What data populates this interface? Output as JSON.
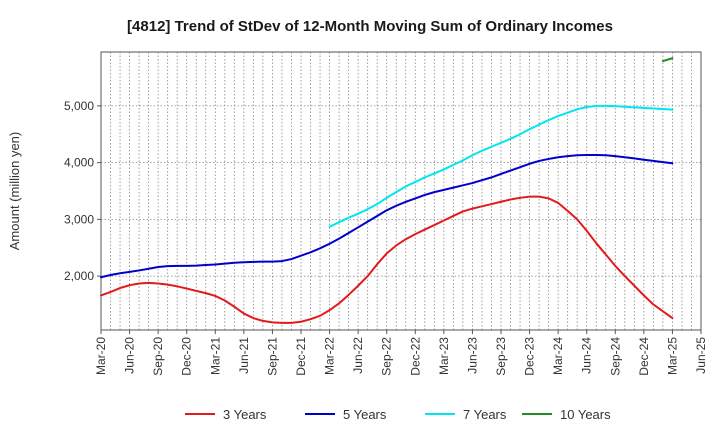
{
  "chart_data": {
    "type": "line",
    "title": "[4812]  Trend of StDev of 12-Month Moving Sum of Ordinary Incomes",
    "xlabel": "",
    "ylabel": "Amount (million yen)",
    "x_tick_labels": [
      "Mar-20",
      "Jun-20",
      "Sep-20",
      "Dec-20",
      "Mar-21",
      "Jun-21",
      "Sep-21",
      "Dec-21",
      "Mar-22",
      "Jun-22",
      "Sep-22",
      "Dec-22",
      "Mar-23",
      "Jun-23",
      "Sep-23",
      "Dec-23",
      "Mar-24",
      "Jun-24",
      "Sep-24",
      "Dec-24",
      "Mar-25",
      "Jun-25"
    ],
    "y_tick_labels": [
      "2,000",
      "3,000",
      "4,000",
      "5,000"
    ],
    "y_ticks": [
      2000,
      3000,
      4000,
      5000
    ],
    "ylim": [
      1050,
      5950
    ],
    "grid": true,
    "legend_position": "bottom",
    "x": [
      "2020-03",
      "2020-04",
      "2020-05",
      "2020-06",
      "2020-07",
      "2020-08",
      "2020-09",
      "2020-10",
      "2020-11",
      "2020-12",
      "2021-01",
      "2021-02",
      "2021-03",
      "2021-04",
      "2021-05",
      "2021-06",
      "2021-07",
      "2021-08",
      "2021-09",
      "2021-10",
      "2021-11",
      "2021-12",
      "2022-01",
      "2022-02",
      "2022-03",
      "2022-04",
      "2022-05",
      "2022-06",
      "2022-07",
      "2022-08",
      "2022-09",
      "2022-10",
      "2022-11",
      "2022-12",
      "2023-01",
      "2023-02",
      "2023-03",
      "2023-04",
      "2023-05",
      "2023-06",
      "2023-07",
      "2023-08",
      "2023-09",
      "2023-10",
      "2023-11",
      "2023-12",
      "2024-01",
      "2024-02",
      "2024-03",
      "2024-04",
      "2024-05",
      "2024-06",
      "2024-07",
      "2024-08",
      "2024-09",
      "2024-10",
      "2024-11",
      "2024-12",
      "2025-01",
      "2025-02",
      "2025-03"
    ],
    "series": [
      {
        "name": "3 Years",
        "color": "#e31a1c",
        "values": [
          1660,
          1720,
          1790,
          1840,
          1870,
          1880,
          1870,
          1850,
          1820,
          1780,
          1740,
          1700,
          1650,
          1570,
          1460,
          1340,
          1260,
          1210,
          1185,
          1175,
          1175,
          1195,
          1240,
          1300,
          1400,
          1520,
          1670,
          1830,
          2000,
          2210,
          2400,
          2540,
          2650,
          2740,
          2820,
          2900,
          2980,
          3060,
          3140,
          3190,
          3230,
          3270,
          3310,
          3350,
          3380,
          3400,
          3400,
          3370,
          3290,
          3150,
          3000,
          2800,
          2580,
          2380,
          2180,
          2000,
          1830,
          1660,
          1500,
          1380,
          1260
        ]
      },
      {
        "name": "5 Years",
        "color": "#0000cc",
        "values": [
          1980,
          2020,
          2050,
          2075,
          2100,
          2130,
          2160,
          2175,
          2180,
          2180,
          2185,
          2195,
          2205,
          2220,
          2235,
          2245,
          2250,
          2255,
          2255,
          2265,
          2300,
          2360,
          2420,
          2490,
          2570,
          2660,
          2760,
          2860,
          2960,
          3060,
          3160,
          3240,
          3310,
          3370,
          3430,
          3480,
          3520,
          3560,
          3600,
          3640,
          3690,
          3740,
          3800,
          3860,
          3920,
          3980,
          4030,
          4065,
          4095,
          4115,
          4130,
          4135,
          4135,
          4130,
          4115,
          4095,
          4075,
          4050,
          4030,
          4010,
          3990
        ]
      },
      {
        "name": "7 Years",
        "color": "#00e5ee",
        "values": [
          null,
          null,
          null,
          null,
          null,
          null,
          null,
          null,
          null,
          null,
          null,
          null,
          null,
          null,
          null,
          null,
          null,
          null,
          null,
          null,
          null,
          null,
          null,
          null,
          2870,
          2950,
          3030,
          3100,
          3180,
          3270,
          3380,
          3480,
          3580,
          3660,
          3740,
          3810,
          3880,
          3960,
          4040,
          4130,
          4210,
          4280,
          4350,
          4420,
          4500,
          4590,
          4670,
          4750,
          4820,
          4880,
          4940,
          4980,
          5000,
          5000,
          4995,
          4985,
          4975,
          4965,
          4955,
          4945,
          4935
        ]
      },
      {
        "name": "10 Years",
        "color": "#228b22",
        "values": [
          null,
          null,
          null,
          null,
          null,
          null,
          null,
          null,
          null,
          null,
          null,
          null,
          null,
          null,
          null,
          null,
          null,
          null,
          null,
          null,
          null,
          null,
          null,
          null,
          null,
          null,
          null,
          null,
          null,
          null,
          null,
          null,
          null,
          null,
          null,
          null,
          null,
          null,
          null,
          null,
          null,
          null,
          null,
          null,
          null,
          null,
          null,
          null,
          null,
          null,
          null,
          null,
          null,
          null,
          null,
          null,
          null,
          null,
          null,
          5790,
          5840
        ]
      }
    ]
  }
}
